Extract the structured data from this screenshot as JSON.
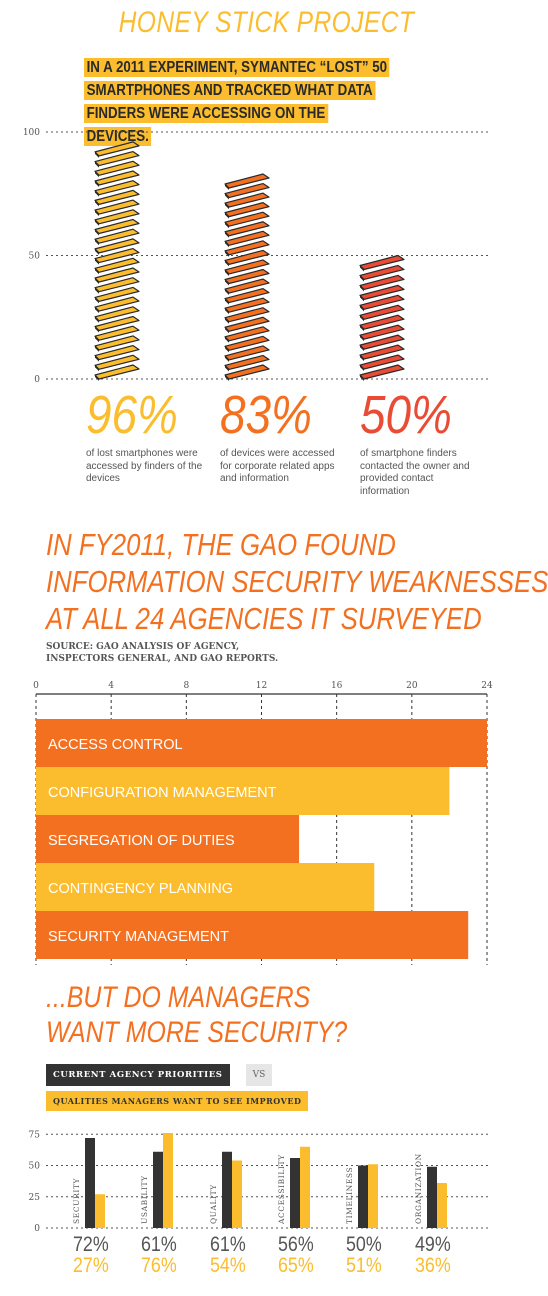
{
  "section1": {
    "title": "HONEY STICK PROJECT",
    "intro": "IN A 2011 EXPERIMENT, SYMANTEC “LOST” 50 SMARTPHONES AND TRACKED WHAT DATA FINDERS WERE ACCESSING ON THE DEVICES.",
    "colors": [
      "#fbbd2e",
      "#f37021",
      "#e94b35"
    ]
  },
  "section2": {
    "title": "IN FY2011, THE GAO FOUND\nINFORMATION SECURITY WEAKNESSES\nAT ALL 24 AGENCIES IT SURVEYED",
    "source": "SOURCE: GAO ANALYSIS OF AGENCY,\nINSPECTORS GENERAL, AND GAO REPORTS."
  },
  "section3": {
    "title": "...BUT DO MANAGERS\nWANT MORE SECURITY?",
    "legend_current": "CURRENT AGENCY PRIORITIES",
    "legend_vs": "VS",
    "legend_wanted": "QUALITIES MANAGERS WANT TO SEE IMPROVED"
  },
  "chart_data": [
    {
      "type": "bar",
      "ylim": [
        0,
        100
      ],
      "yticks": [
        "100",
        "50",
        "0"
      ],
      "categories": [
        "96%",
        "83%",
        "50%"
      ],
      "values": [
        96,
        83,
        50
      ],
      "percent_labels": [
        "96%",
        "83%",
        "50%"
      ],
      "descriptions": [
        "of lost smartphones were accessed by finders of the devices",
        "of devices were accessed for corporate related apps and information",
        "of smartphone finders contacted the owner and provided contact information"
      ]
    },
    {
      "type": "bar",
      "orientation": "horizontal",
      "xlim": [
        0,
        24
      ],
      "xticks": [
        "0",
        "4",
        "8",
        "12",
        "16",
        "20",
        "24"
      ],
      "categories": [
        "ACCESS CONTROL",
        "CONFIGURATION MANAGEMENT",
        "SEGREGATION OF DUTIES",
        "CONTINGENCY PLANNING",
        "SECURITY MANAGEMENT"
      ],
      "values": [
        24,
        22,
        14,
        18,
        23
      ],
      "colors": [
        "#f37021",
        "#fbbd2e",
        "#f37021",
        "#fbbd2e",
        "#f37021"
      ]
    },
    {
      "type": "bar",
      "ylim": [
        0,
        80
      ],
      "yticks": [
        "75",
        "50",
        "25",
        "0"
      ],
      "categories": [
        "SECURITY",
        "USABILITY",
        "QUALITY",
        "ACCESSIBILITY",
        "TIMELINESS",
        "ORGANIZATION"
      ],
      "series": [
        {
          "values": [
            72,
            61,
            61,
            56,
            50,
            49
          ],
          "labels": [
            "72%",
            "61%",
            "61%",
            "56%",
            "50%",
            "49%"
          ],
          "color": "#333333"
        },
        {
          "values": [
            27,
            76,
            54,
            65,
            51,
            36
          ],
          "labels": [
            "27%",
            "76%",
            "54%",
            "65%",
            "51%",
            "36%"
          ],
          "color": "#fbbd2e"
        }
      ]
    }
  ]
}
